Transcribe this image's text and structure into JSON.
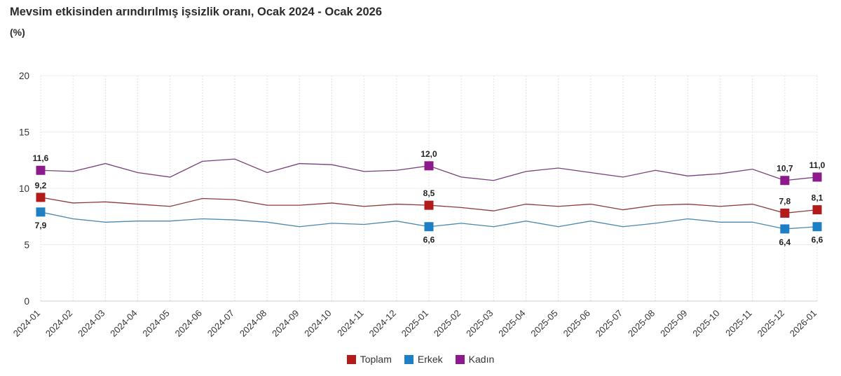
{
  "header": {
    "title": "Mevsim etkisinden arındırılmış işsizlik oranı, Ocak 2024 - Ocak 2026",
    "subtitle": "(%)"
  },
  "chart_data": {
    "type": "line",
    "title": "Mevsim etkisinden arındırılmış işsizlik oranı, Ocak 2024 - Ocak 2026",
    "ylabel": "(%)",
    "xlabel": "",
    "ylim": [
      0,
      20
    ],
    "yticks": [
      0,
      5,
      10,
      15,
      20
    ],
    "grid": "vertical dotted + horizontal",
    "legend_position": "bottom-center",
    "categories": [
      "2024-01",
      "2024-02",
      "2024-03",
      "2024-04",
      "2024-05",
      "2024-06",
      "2024-07",
      "2024-08",
      "2024-09",
      "2024-10",
      "2024-11",
      "2024-12",
      "2025-01",
      "2025-02",
      "2025-03",
      "2025-04",
      "2025-05",
      "2025-06",
      "2025-07",
      "2025-08",
      "2025-09",
      "2025-10",
      "2025-11",
      "2025-12",
      "2026-01"
    ],
    "series": [
      {
        "name": "Toplam",
        "color": "#b31b1b",
        "line_color": "#8c3a3a",
        "values": [
          9.2,
          8.7,
          8.8,
          8.6,
          8.4,
          9.1,
          9.0,
          8.5,
          8.5,
          8.7,
          8.4,
          8.6,
          8.5,
          8.3,
          8.0,
          8.6,
          8.4,
          8.6,
          8.1,
          8.5,
          8.6,
          8.4,
          8.6,
          7.8,
          8.1
        ],
        "labeled_points": [
          {
            "index": 0,
            "label": "9,2",
            "pos": "above"
          },
          {
            "index": 12,
            "label": "8,5",
            "pos": "above"
          },
          {
            "index": 23,
            "label": "7,8",
            "pos": "above"
          },
          {
            "index": 24,
            "label": "8,1",
            "pos": "above"
          }
        ]
      },
      {
        "name": "Erkek",
        "color": "#1f7fc4",
        "line_color": "#4a86ad",
        "values": [
          7.9,
          7.3,
          7.0,
          7.1,
          7.1,
          7.3,
          7.2,
          7.0,
          6.6,
          6.9,
          6.8,
          7.1,
          6.6,
          6.9,
          6.6,
          7.1,
          6.6,
          7.1,
          6.6,
          6.9,
          7.3,
          7.0,
          7.0,
          6.4,
          6.6
        ],
        "labeled_points": [
          {
            "index": 0,
            "label": "7,9",
            "pos": "below"
          },
          {
            "index": 12,
            "label": "6,6",
            "pos": "below"
          },
          {
            "index": 23,
            "label": "6,4",
            "pos": "below"
          },
          {
            "index": 24,
            "label": "6,6",
            "pos": "below"
          }
        ]
      },
      {
        "name": "Kadın",
        "color": "#8c1a8c",
        "line_color": "#7a3f7a",
        "values": [
          11.6,
          11.5,
          12.2,
          11.4,
          11.0,
          12.4,
          12.6,
          11.4,
          12.2,
          12.1,
          11.5,
          11.6,
          12.0,
          11.0,
          10.7,
          11.5,
          11.8,
          11.4,
          11.0,
          11.6,
          11.1,
          11.3,
          11.7,
          10.7,
          11.0
        ],
        "labeled_points": [
          {
            "index": 0,
            "label": "11,6",
            "pos": "above"
          },
          {
            "index": 12,
            "label": "12,0",
            "pos": "above"
          },
          {
            "index": 23,
            "label": "10,7",
            "pos": "above"
          },
          {
            "index": 24,
            "label": "11,0",
            "pos": "above"
          }
        ]
      }
    ]
  }
}
